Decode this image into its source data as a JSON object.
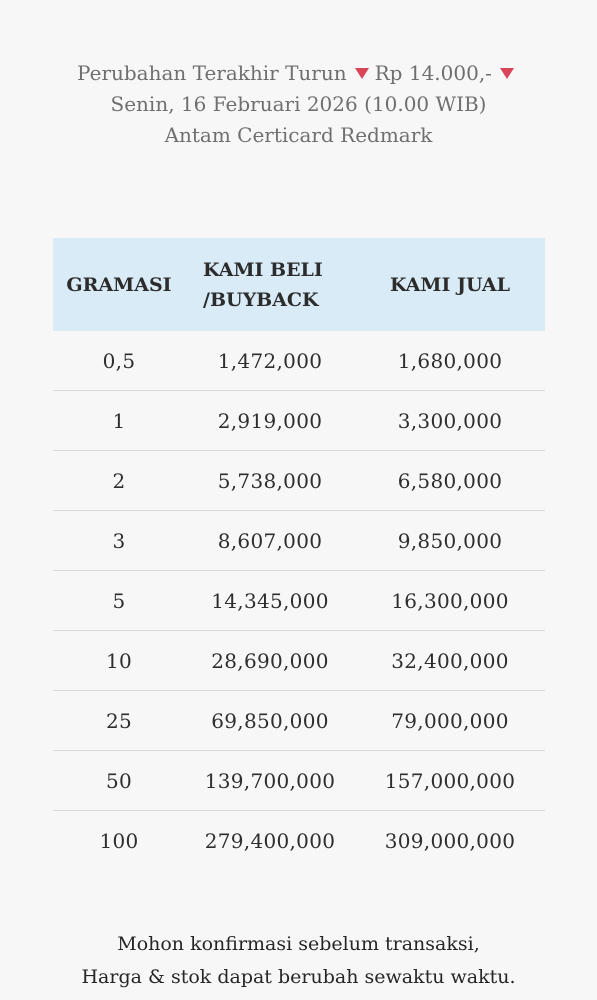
{
  "header": {
    "line1_prefix": "Perubahan Terakhir Turun",
    "line1_amount": "Rp 14.000,-",
    "line2": "Senin, 16 Februari 2026 (10.00 WIB)",
    "line3": "Antam Certicard Redmark",
    "indicator_color": "#d9465a",
    "indicator_icon": "triangle-down-icon"
  },
  "table": {
    "columns": [
      "GRAMASI",
      "KAMI BELI",
      "/BUYBACK",
      "KAMI JUAL"
    ],
    "header_bg": "#d9ebf6",
    "rows": [
      [
        "0,5",
        "1,472,000",
        "1,680,000"
      ],
      [
        "1",
        "2,919,000",
        "3,300,000"
      ],
      [
        "2",
        "5,738,000",
        "6,580,000"
      ],
      [
        "3",
        "8,607,000",
        "9,850,000"
      ],
      [
        "5",
        "14,345,000",
        "16,300,000"
      ],
      [
        "10",
        "28,690,000",
        "32,400,000"
      ],
      [
        "25",
        "69,850,000",
        "79,000,000"
      ],
      [
        "50",
        "139,700,000",
        "157,000,000"
      ],
      [
        "100",
        "279,400,000",
        "309,000,000"
      ]
    ]
  },
  "footer": {
    "line1": "Mohon konfirmasi sebelum transaksi,",
    "line2": "Harga & stok dapat berubah sewaktu waktu."
  }
}
